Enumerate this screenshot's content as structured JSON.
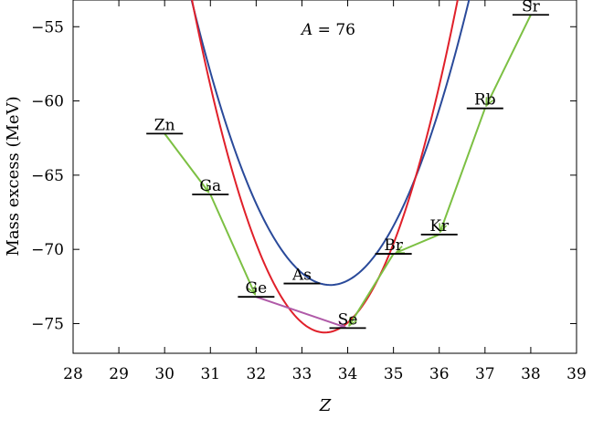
{
  "chart_data": {
    "type": "line",
    "annotation": "A = 76",
    "annotation_A": "A",
    "annotation_rest": " = 76",
    "xlabel": "Z",
    "ylabel": "Mass excess (MeV)",
    "xlim": [
      28,
      39
    ],
    "ylim": [
      -77,
      -53.2
    ],
    "xticks": [
      28,
      29,
      30,
      31,
      32,
      33,
      34,
      35,
      36,
      37,
      38,
      39
    ],
    "yticks": [
      -75,
      -70,
      -65,
      -60,
      -55
    ],
    "grid": false,
    "colors": {
      "odd_odd_curve": "#2a4a9a",
      "even_even_curve": "#e0202a",
      "beta_arrow": "#7cc043",
      "double_beta_arrow": "#b05aa8"
    },
    "series": [
      {
        "curve": "blue",
        "vertex_x": 33.62,
        "vertex_y": -72.4,
        "curvature": 2.09
      },
      {
        "curve": "red",
        "vertex_x": 33.5,
        "vertex_y": -75.6,
        "curvature": 2.66
      }
    ],
    "elements": [
      {
        "label": "Zn",
        "z": 30,
        "mass_excess": -62.2
      },
      {
        "label": "Ga",
        "z": 31,
        "mass_excess": -66.3
      },
      {
        "label": "Ge",
        "z": 32,
        "mass_excess": -73.2
      },
      {
        "label": "As",
        "z": 33,
        "mass_excess": -72.3
      },
      {
        "label": "Se",
        "z": 34,
        "mass_excess": -75.3
      },
      {
        "label": "Br",
        "z": 35,
        "mass_excess": -70.3
      },
      {
        "label": "Kr",
        "z": 36,
        "mass_excess": -69.0
      },
      {
        "label": "Rb",
        "z": 37,
        "mass_excess": -60.5
      },
      {
        "label": "Sr",
        "z": 38,
        "mass_excess": -54.2
      }
    ],
    "transitions": [
      {
        "from": "Zn",
        "to": "Ga",
        "type": "beta"
      },
      {
        "from": "Ga",
        "to": "Ge",
        "type": "beta"
      },
      {
        "from": "Ge",
        "to": "Se",
        "type": "double_beta"
      },
      {
        "from": "Br",
        "to": "Se",
        "type": "beta"
      },
      {
        "from": "Kr",
        "to": "Br",
        "type": "beta"
      },
      {
        "from": "Rb",
        "to": "Kr",
        "type": "beta"
      },
      {
        "from": "Sr",
        "to": "Rb",
        "type": "beta"
      }
    ]
  }
}
